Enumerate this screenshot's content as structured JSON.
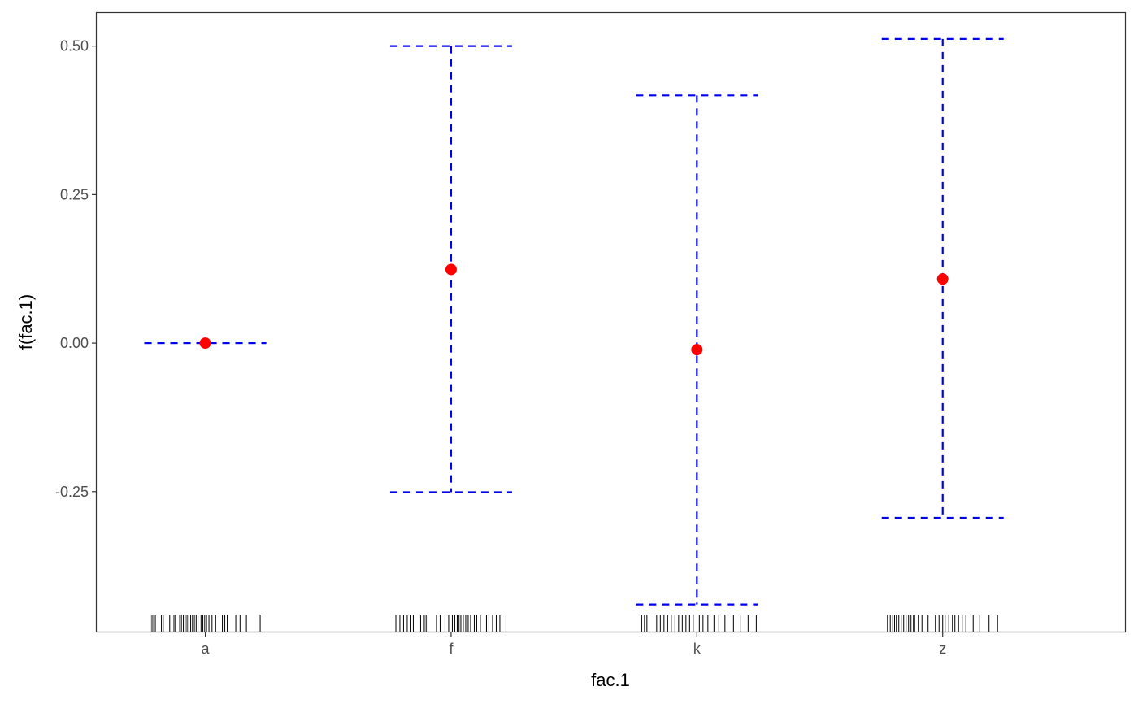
{
  "chart_data": {
    "type": "errorbar",
    "xlabel": "fac.1",
    "ylabel": "f(fac.1)",
    "categories": [
      "a",
      "f",
      "k",
      "z"
    ],
    "estimate": [
      0.0,
      0.124,
      -0.011,
      0.108
    ],
    "lower": [
      0.0,
      -0.251,
      -0.44,
      -0.294
    ],
    "upper": [
      0.0,
      0.5,
      0.417,
      0.512
    ],
    "ylim": [
      -0.487,
      0.557
    ],
    "yticks": [
      -0.25,
      0.0,
      0.25,
      0.5
    ],
    "ytick_labels": [
      "-0.25",
      "0.00",
      "0.25",
      "0.50"
    ],
    "rug_offsets": [
      [
        -0.453,
        -0.437,
        -0.423,
        -0.41,
        -0.36,
        -0.345,
        -0.292,
        -0.257,
        -0.245,
        -0.21,
        -0.196,
        -0.18,
        -0.165,
        -0.15,
        -0.135,
        -0.12,
        -0.105,
        -0.09,
        -0.075,
        -0.06,
        -0.035,
        -0.02,
        -0.005,
        0.01,
        0.03,
        0.055,
        0.085,
        0.14,
        0.16,
        0.18,
        0.25,
        0.285,
        0.337,
        0.45
      ],
      [
        -0.453,
        -0.42,
        -0.39,
        -0.36,
        -0.33,
        -0.31,
        -0.25,
        -0.22,
        -0.205,
        -0.19,
        -0.12,
        -0.09,
        -0.05,
        -0.02,
        0.01,
        0.03,
        0.05,
        0.065,
        0.08,
        0.1,
        0.12,
        0.14,
        0.16,
        0.19,
        0.21,
        0.24,
        0.29,
        0.31,
        0.34,
        0.37,
        0.4,
        0.45
      ],
      [
        -0.453,
        -0.43,
        -0.41,
        -0.33,
        -0.3,
        -0.27,
        -0.24,
        -0.21,
        -0.18,
        -0.15,
        -0.12,
        -0.09,
        -0.06,
        -0.03,
        0.02,
        0.05,
        0.09,
        0.14,
        0.18,
        0.23,
        0.3,
        0.36,
        0.42,
        0.487
      ],
      [
        -0.453,
        -0.43,
        -0.41,
        -0.395,
        -0.38,
        -0.36,
        -0.34,
        -0.32,
        -0.3,
        -0.28,
        -0.26,
        -0.24,
        -0.23,
        -0.2,
        -0.17,
        -0.12,
        -0.06,
        -0.03,
        0.0,
        0.02,
        0.05,
        0.08,
        0.1,
        0.13,
        0.16,
        0.19,
        0.25,
        0.3,
        0.38,
        0.45
      ]
    ],
    "colors": {
      "estimate": "#ff0000",
      "interval": "#0000ee",
      "rug": "#000000",
      "frame": "#333333"
    },
    "grid": false,
    "legend": "none"
  }
}
